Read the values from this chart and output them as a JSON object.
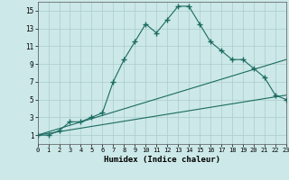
{
  "xlabel": "Humidex (Indice chaleur)",
  "bg_color": "#cce8e8",
  "line_color": "#1a6b60",
  "xlim": [
    0,
    23
  ],
  "ylim": [
    0,
    16
  ],
  "xticks": [
    0,
    1,
    2,
    3,
    4,
    5,
    6,
    7,
    8,
    9,
    10,
    11,
    12,
    13,
    14,
    15,
    16,
    17,
    18,
    19,
    20,
    21,
    22,
    23
  ],
  "yticks": [
    1,
    3,
    5,
    7,
    9,
    11,
    13,
    15
  ],
  "series1_x": [
    0,
    1,
    2,
    3,
    4,
    5,
    6,
    7,
    8,
    9,
    10,
    11,
    12,
    13,
    14,
    15,
    16,
    17,
    18,
    19,
    20,
    21,
    22,
    23
  ],
  "series1_y": [
    1,
    1,
    1.5,
    2.5,
    2.5,
    3,
    3.5,
    7,
    9.5,
    11.5,
    13.5,
    12.5,
    14,
    15.5,
    15.5,
    13.5,
    11.5,
    10.5,
    9.5,
    9.5,
    8.5,
    7.5,
    5.5,
    5
  ],
  "series2_x": [
    0,
    23
  ],
  "series2_y": [
    1,
    9.5
  ],
  "series3_x": [
    0,
    23
  ],
  "series3_y": [
    1,
    5.5
  ],
  "grid_color": "#aacccc",
  "font_family": "monospace",
  "xlabel_fontsize": 6.5,
  "tick_fontsize_x": 5.0,
  "tick_fontsize_y": 5.5
}
